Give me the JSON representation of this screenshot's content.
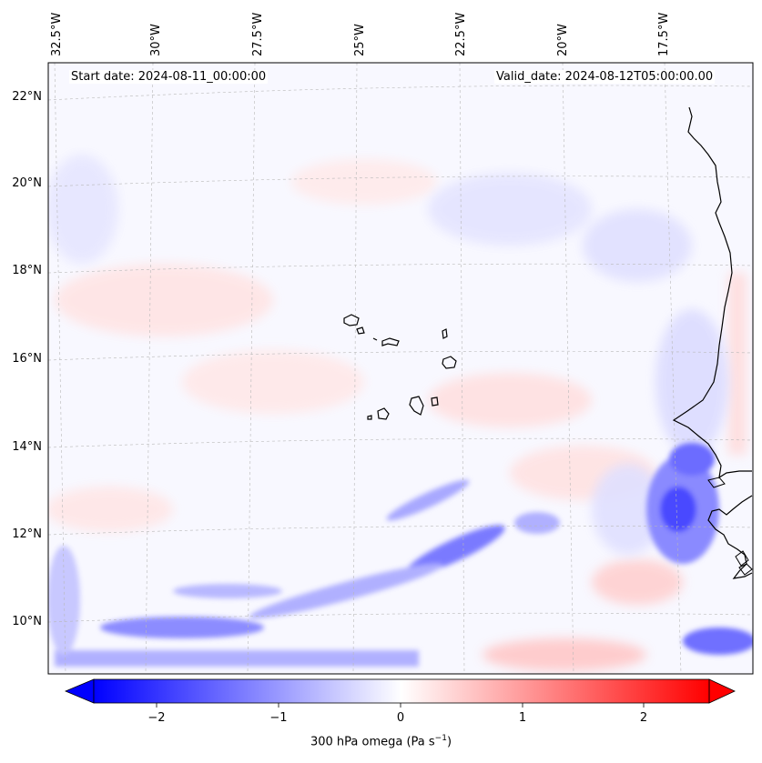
{
  "header": {
    "start_date": "Start date: 2024-08-11_00:00:00",
    "valid_date": "Valid_date: 2024-08-12T05:00:00.00"
  },
  "axes": {
    "lon_labels": [
      "32.5°W",
      "30°W",
      "27.5°W",
      "25°W",
      "22.5°W",
      "20°W",
      "17.5°W"
    ],
    "lat_labels": [
      "22°N",
      "20°N",
      "18°N",
      "16°N",
      "14°N",
      "12°N",
      "10°N"
    ]
  },
  "colorbar": {
    "label_prefix": "300 hPa omega (Pa s",
    "label_exp": "−1",
    "label_suffix": ")",
    "ticks": [
      "−2",
      "−1",
      "0",
      "1",
      "2"
    ],
    "min": -2.7,
    "max": 2.7,
    "negative_color": "#0000ff",
    "positive_color": "#ff0000"
  },
  "colors": {
    "coastline": "#000000",
    "gridline": "#b0b0b0",
    "field_background": "#f7f7ff"
  }
}
